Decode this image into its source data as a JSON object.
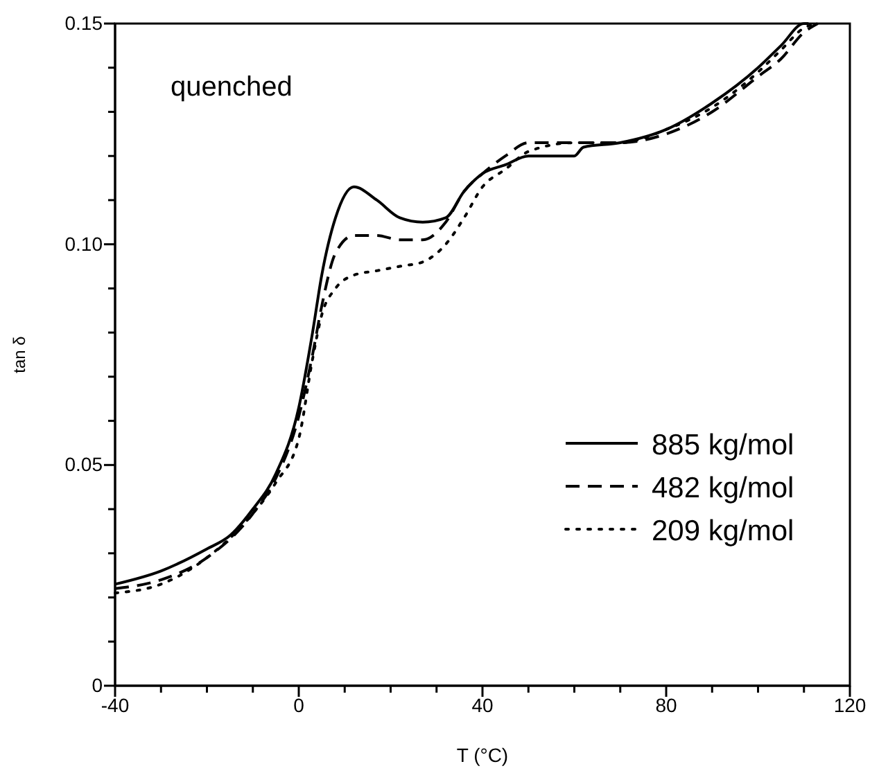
{
  "chart_data": {
    "type": "line",
    "xlabel": "T (°C)",
    "ylabel": "tan δ",
    "annotations": [
      "quenched"
    ],
    "xlim": [
      -40,
      120
    ],
    "xticks": [
      -40,
      {
        "value": -30,
        "label": null
      },
      {
        "value": -20,
        "label": null
      },
      {
        "value": -10,
        "label": null
      },
      0,
      {
        "value": 10,
        "label": null
      },
      {
        "value": 20,
        "label": null
      },
      {
        "value": 30,
        "label": null
      },
      40,
      {
        "value": 50,
        "label": null
      },
      {
        "value": 60,
        "label": null
      },
      {
        "value": 70,
        "label": null
      },
      80,
      {
        "value": 90,
        "label": null
      },
      {
        "value": 100,
        "label": null
      },
      {
        "value": 110,
        "label": null
      },
      120
    ],
    "ylim": [
      0,
      0.15
    ],
    "yticks": [
      0,
      {
        "value": 0.01,
        "label": null
      },
      {
        "value": 0.02,
        "label": null
      },
      {
        "value": 0.03,
        "label": null
      },
      {
        "value": 0.04,
        "label": null
      },
      0.05,
      {
        "value": 0.06,
        "label": null
      },
      {
        "value": 0.07,
        "label": null
      },
      {
        "value": 0.08,
        "label": null
      },
      {
        "value": 0.09,
        "label": null
      },
      {
        "value": 0.1,
        "label": "0.10"
      },
      {
        "value": 0.11,
        "label": null
      },
      {
        "value": 0.12,
        "label": null
      },
      {
        "value": 0.13,
        "label": null
      },
      {
        "value": 0.14,
        "label": null
      },
      0.15
    ],
    "grid": false,
    "legend": "bottom right",
    "marker": "none",
    "series": [
      {
        "name": "885 kg/mol",
        "color": "#000000",
        "line_style": "solid",
        "x": [
          -40,
          -30,
          -20,
          -15,
          -10,
          -5,
          0,
          3,
          5,
          8,
          12,
          17,
          22,
          27,
          32,
          36,
          40,
          45,
          50,
          60,
          62,
          70,
          80,
          90,
          100,
          105,
          110,
          111
        ],
        "values": [
          0.023,
          0.026,
          0.031,
          0.034,
          0.04,
          0.048,
          0.063,
          0.08,
          0.093,
          0.106,
          0.113,
          0.11,
          0.106,
          0.105,
          0.106,
          0.112,
          0.116,
          0.118,
          0.12,
          0.12,
          0.122,
          0.123,
          0.126,
          0.132,
          0.14,
          0.145,
          0.15,
          0.15
        ]
      },
      {
        "name": "482 kg/mol",
        "color": "#000000",
        "line_style": "dashed",
        "x": [
          -40,
          -30,
          -20,
          -10,
          -5,
          0,
          3,
          5,
          8,
          12,
          17,
          22,
          27,
          32,
          36,
          40,
          45,
          50,
          55,
          60,
          70,
          80,
          90,
          100,
          105,
          110,
          113
        ],
        "values": [
          0.022,
          0.024,
          0.029,
          0.039,
          0.047,
          0.061,
          0.075,
          0.086,
          0.098,
          0.102,
          0.102,
          0.101,
          0.101,
          0.105,
          0.112,
          0.116,
          0.12,
          0.123,
          0.123,
          0.123,
          0.123,
          0.125,
          0.13,
          0.138,
          0.142,
          0.148,
          0.15
        ]
      },
      {
        "name": "209 kg/mol",
        "color": "#000000",
        "line_style": "dotted",
        "x": [
          -40,
          -30,
          -20,
          -10,
          -5,
          0,
          3,
          5,
          8,
          12,
          17,
          22,
          27,
          32,
          36,
          40,
          45,
          50,
          60,
          70,
          80,
          90,
          100,
          105,
          110,
          113
        ],
        "values": [
          0.021,
          0.023,
          0.029,
          0.039,
          0.046,
          0.056,
          0.074,
          0.084,
          0.09,
          0.093,
          0.094,
          0.095,
          0.096,
          0.1,
          0.106,
          0.113,
          0.117,
          0.121,
          0.123,
          0.123,
          0.126,
          0.131,
          0.139,
          0.144,
          0.149,
          0.15
        ]
      }
    ]
  }
}
